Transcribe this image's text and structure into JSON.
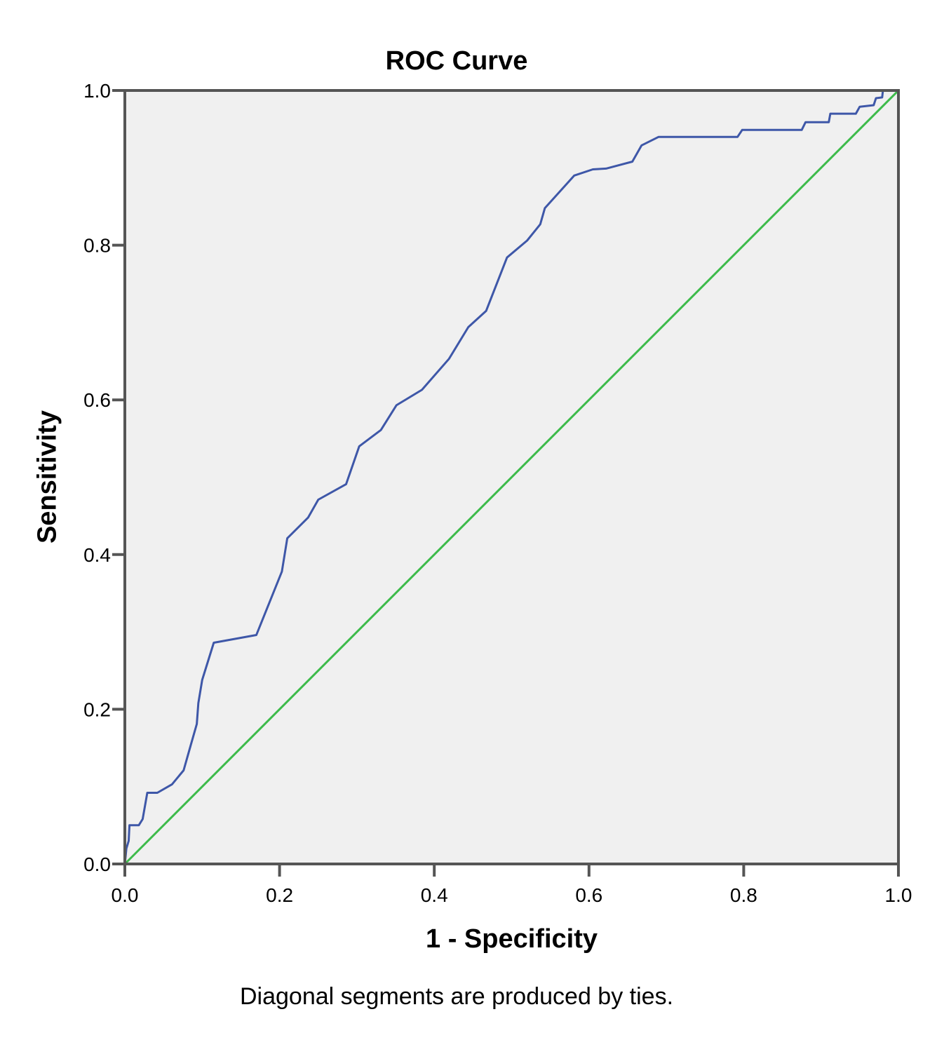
{
  "chart_data": {
    "type": "line",
    "title": "ROC Curve",
    "xlabel": "1 - Specificity",
    "ylabel": "Sensitivity",
    "footnote": "Diagonal segments are produced by ties.",
    "xlim": [
      0,
      1
    ],
    "ylim": [
      0,
      1
    ],
    "xticks": [
      "0.0",
      "0.2",
      "0.4",
      "0.6",
      "0.8",
      "1.0"
    ],
    "yticks": [
      "0.0",
      "0.2",
      "0.4",
      "0.6",
      "0.8",
      "1.0"
    ],
    "grid": false,
    "legend": null,
    "plot_background": "#f0f0f0",
    "series": [
      {
        "name": "ROC curve",
        "color": "#3e57a8",
        "x": [
          0.0,
          0.002,
          0.005,
          0.006,
          0.018,
          0.023,
          0.029,
          0.042,
          0.061,
          0.076,
          0.085,
          0.093,
          0.095,
          0.1,
          0.115,
          0.17,
          0.203,
          0.21,
          0.237,
          0.25,
          0.286,
          0.303,
          0.331,
          0.351,
          0.384,
          0.419,
          0.444,
          0.467,
          0.494,
          0.52,
          0.537,
          0.543,
          0.581,
          0.605,
          0.622,
          0.656,
          0.668,
          0.69,
          0.792,
          0.798,
          0.875,
          0.88,
          0.91,
          0.912,
          0.945,
          0.95,
          0.968,
          0.971,
          0.979,
          0.98,
          1.0
        ],
        "y": [
          0.0,
          0.02,
          0.03,
          0.05,
          0.05,
          0.058,
          0.092,
          0.092,
          0.103,
          0.121,
          0.153,
          0.181,
          0.208,
          0.238,
          0.286,
          0.296,
          0.378,
          0.421,
          0.448,
          0.471,
          0.491,
          0.54,
          0.561,
          0.593,
          0.613,
          0.653,
          0.694,
          0.715,
          0.784,
          0.806,
          0.827,
          0.848,
          0.89,
          0.898,
          0.899,
          0.908,
          0.929,
          0.94,
          0.94,
          0.949,
          0.949,
          0.959,
          0.959,
          0.97,
          0.97,
          0.979,
          0.981,
          0.99,
          0.991,
          1.0,
          1.0
        ]
      },
      {
        "name": "Reference line",
        "color": "#3dbb4a",
        "x": [
          0,
          1
        ],
        "y": [
          0,
          1
        ]
      }
    ]
  }
}
